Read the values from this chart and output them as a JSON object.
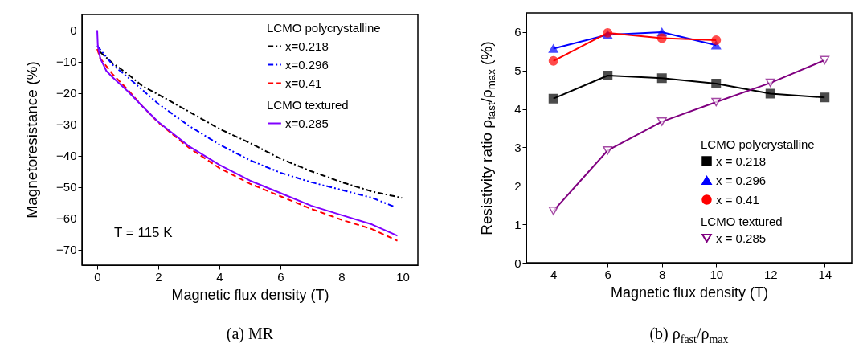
{
  "chart_data": [
    {
      "type": "line",
      "xlabel": "Magnetic flux density (T)",
      "ylabel": "Magnetoresistance (%)",
      "subtitle": "(a) MR",
      "annotations": [
        "T = 115 K"
      ],
      "legend_title": [
        "LCMO polycrystalline",
        null,
        null,
        "LCMO textured"
      ],
      "legend": "top right",
      "grid": false,
      "xlim": [
        -0.5,
        10.5
      ],
      "xticks": [
        0,
        2,
        4,
        6,
        8,
        10
      ],
      "ylim": [
        -75,
        5
      ],
      "yticks": [
        0,
        -10,
        -20,
        -30,
        -40,
        -50,
        -60,
        -70
      ],
      "series": [
        {
          "name": "x=0.218",
          "color": "#000000",
          "line_style": "dashdot",
          "x": [
            0.1,
            0.5,
            1,
            1.5,
            2,
            3,
            4,
            5,
            6,
            7,
            8,
            9,
            9.98
          ],
          "values": [
            -7,
            -10.5,
            -14,
            -18,
            -20.5,
            -26,
            -31.5,
            -36,
            -41,
            -45,
            -48.5,
            -51.5,
            -53.5
          ]
        },
        {
          "name": "x=0.296",
          "color": "#0000ff",
          "line_style": "dashdotdot",
          "x": [
            0,
            0.5,
            1,
            2,
            3,
            4,
            5,
            6,
            7,
            8,
            9,
            9.77
          ],
          "values": [
            -5,
            -11,
            -15,
            -23.5,
            -30.5,
            -36.5,
            -41.5,
            -45.5,
            -48.5,
            -51,
            -53.5,
            -56.5
          ]
        },
        {
          "name": "x=0.41",
          "color": "#ff0000",
          "line_style": "dashed",
          "x": [
            0,
            0.1,
            0.3,
            0.5,
            1,
            1.5,
            2,
            3,
            4,
            5,
            6,
            7,
            8,
            9,
            9.83
          ],
          "values": [
            -6,
            -9,
            -11.5,
            -14,
            -19,
            -24.5,
            -29.5,
            -37.5,
            -44,
            -49,
            -53,
            -57,
            -60.5,
            -63.5,
            -67.2
          ]
        },
        {
          "name": "x=0.285",
          "color": "#8000ff",
          "line_style": "solid",
          "x": [
            0,
            0.02,
            0.1,
            0.3,
            0.5,
            1,
            1.5,
            2,
            3,
            4,
            5,
            6,
            7,
            8,
            9,
            9.83
          ],
          "values": [
            0,
            -5,
            -9,
            -13,
            -15,
            -19.5,
            -24.5,
            -29.3,
            -37,
            -43,
            -48,
            -52,
            -56,
            -59,
            -62,
            -65.6
          ]
        }
      ]
    },
    {
      "type": "line",
      "xlabel": "Magnetic flux density (T)",
      "ylabel": "Resistivity ratio ρ$_{fast}$/ρ$_{max}$ (%)",
      "subtitle": "(b) ρ$_{fast}$/ρ$_{max}$",
      "legend_title": [
        "LCMO polycrystalline",
        null,
        null,
        "LCMO textured"
      ],
      "legend": "bottom right",
      "grid": false,
      "xlim": [
        3,
        15
      ],
      "xticks": [
        4,
        6,
        8,
        10,
        12,
        14
      ],
      "ylim": [
        0,
        6.5
      ],
      "yticks": [
        0,
        1,
        2,
        3,
        4,
        5,
        6
      ],
      "series": [
        {
          "name": "x = 0.218",
          "color": "#000000",
          "marker": "square",
          "x": [
            4,
            6,
            8,
            10,
            12,
            14
          ],
          "values": [
            4.27,
            4.87,
            4.8,
            4.66,
            4.4,
            4.3
          ]
        },
        {
          "name": "x = 0.296",
          "color": "#0000ff",
          "marker": "triangle",
          "x": [
            4,
            6,
            8,
            10
          ],
          "values": [
            5.57,
            5.93,
            6.0,
            5.66
          ]
        },
        {
          "name": "x = 0.41",
          "color": "#ff0000",
          "marker": "circle",
          "x": [
            4,
            6,
            8,
            10
          ],
          "values": [
            5.25,
            5.98,
            5.84,
            5.79
          ]
        },
        {
          "name": "x = 0.285",
          "color": "#800080",
          "marker": "triangle-down-open",
          "x": [
            4,
            6,
            8,
            10,
            12,
            14
          ],
          "values": [
            1.35,
            2.92,
            3.67,
            4.18,
            4.68,
            5.27
          ]
        }
      ]
    }
  ]
}
